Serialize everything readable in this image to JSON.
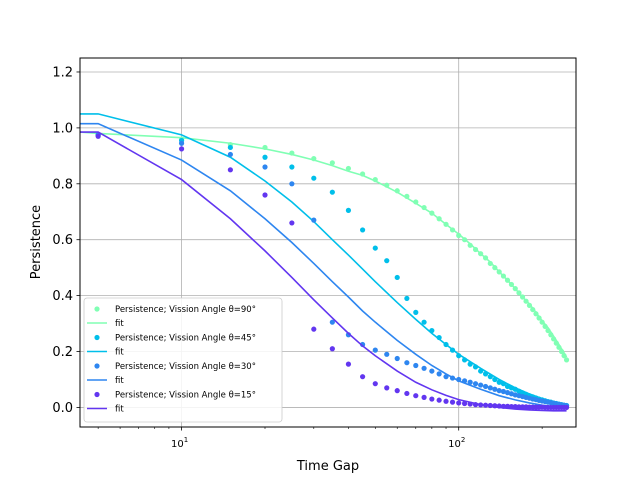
{
  "chart_data": {
    "type": "scatter",
    "xlabel": "Time Gap",
    "ylabel": "Persistence",
    "xscale": "log",
    "xlim": [
      4.3,
      265
    ],
    "ylim": [
      -0.07,
      1.25
    ],
    "x_ticks": [
      {
        "value": 10,
        "base": "10",
        "exp": "1"
      },
      {
        "value": 100,
        "base": "10",
        "exp": "2"
      }
    ],
    "y_ticks": [
      "0.0",
      "0.2",
      "0.4",
      "0.6",
      "0.8",
      "1.0",
      "1.2"
    ],
    "grid": true,
    "legend_position": "lower-left",
    "series": [
      {
        "name": "Persistence; Vission Angle θ=90°",
        "fit_name": "fit",
        "color": "#80ffb4",
        "points": [
          [
            5,
            0.975
          ],
          [
            10,
            0.96
          ],
          [
            15,
            0.94
          ],
          [
            20,
            0.93
          ],
          [
            25,
            0.91
          ],
          [
            30,
            0.89
          ],
          [
            35,
            0.875
          ],
          [
            40,
            0.855
          ],
          [
            45,
            0.835
          ],
          [
            50,
            0.815
          ],
          [
            55,
            0.795
          ],
          [
            60,
            0.775
          ],
          [
            65,
            0.755
          ],
          [
            70,
            0.735
          ],
          [
            75,
            0.715
          ],
          [
            80,
            0.695
          ],
          [
            85,
            0.675
          ],
          [
            90,
            0.655
          ],
          [
            95,
            0.635
          ],
          [
            100,
            0.615
          ],
          [
            105,
            0.6
          ],
          [
            110,
            0.58
          ],
          [
            115,
            0.565
          ],
          [
            120,
            0.55
          ],
          [
            125,
            0.535
          ],
          [
            130,
            0.515
          ],
          [
            135,
            0.5
          ],
          [
            140,
            0.485
          ],
          [
            145,
            0.47
          ],
          [
            150,
            0.455
          ],
          [
            155,
            0.44
          ],
          [
            160,
            0.425
          ],
          [
            165,
            0.41
          ],
          [
            170,
            0.395
          ],
          [
            175,
            0.38
          ],
          [
            180,
            0.365
          ],
          [
            185,
            0.35
          ],
          [
            190,
            0.335
          ],
          [
            195,
            0.32
          ],
          [
            200,
            0.305
          ],
          [
            205,
            0.29
          ],
          [
            210,
            0.275
          ],
          [
            215,
            0.26
          ],
          [
            220,
            0.245
          ],
          [
            225,
            0.23
          ],
          [
            230,
            0.215
          ],
          [
            235,
            0.2
          ],
          [
            240,
            0.185
          ],
          [
            245,
            0.17
          ]
        ],
        "fit": [
          [
            4.3,
            0.985
          ],
          [
            5,
            0.98
          ],
          [
            10,
            0.965
          ],
          [
            15,
            0.945
          ],
          [
            20,
            0.925
          ],
          [
            25,
            0.905
          ],
          [
            30,
            0.885
          ],
          [
            35,
            0.865
          ],
          [
            40,
            0.845
          ],
          [
            45,
            0.83
          ],
          [
            50,
            0.81
          ],
          [
            60,
            0.77
          ],
          [
            70,
            0.73
          ],
          [
            80,
            0.695
          ],
          [
            90,
            0.655
          ],
          [
            100,
            0.62
          ],
          [
            110,
            0.585
          ],
          [
            120,
            0.55
          ],
          [
            130,
            0.52
          ],
          [
            140,
            0.485
          ],
          [
            150,
            0.455
          ],
          [
            160,
            0.425
          ],
          [
            170,
            0.395
          ],
          [
            180,
            0.37
          ],
          [
            190,
            0.34
          ],
          [
            200,
            0.31
          ],
          [
            210,
            0.285
          ],
          [
            220,
            0.255
          ],
          [
            230,
            0.225
          ],
          [
            240,
            0.195
          ],
          [
            245,
            0.18
          ]
        ]
      },
      {
        "name": "Persistence; Vission Angle θ=45°",
        "fit_name": "fit",
        "color": "#00bfea",
        "points": [
          [
            5,
            0.975
          ],
          [
            10,
            0.955
          ],
          [
            15,
            0.93
          ],
          [
            20,
            0.895
          ],
          [
            25,
            0.86
          ],
          [
            30,
            0.82
          ],
          [
            35,
            0.77
          ],
          [
            40,
            0.705
          ],
          [
            45,
            0.635
          ],
          [
            50,
            0.57
          ],
          [
            55,
            0.525
          ],
          [
            60,
            0.465
          ],
          [
            65,
            0.39
          ],
          [
            70,
            0.34
          ],
          [
            75,
            0.305
          ],
          [
            80,
            0.275
          ],
          [
            85,
            0.25
          ],
          [
            90,
            0.225
          ],
          [
            95,
            0.205
          ],
          [
            100,
            0.185
          ],
          [
            105,
            0.17
          ],
          [
            110,
            0.155
          ],
          [
            115,
            0.145
          ],
          [
            120,
            0.13
          ],
          [
            125,
            0.12
          ],
          [
            130,
            0.11
          ],
          [
            135,
            0.1
          ],
          [
            140,
            0.09
          ],
          [
            145,
            0.085
          ],
          [
            150,
            0.075
          ],
          [
            155,
            0.07
          ],
          [
            160,
            0.065
          ],
          [
            165,
            0.058
          ],
          [
            170,
            0.052
          ],
          [
            175,
            0.047
          ],
          [
            180,
            0.042
          ],
          [
            185,
            0.038
          ],
          [
            190,
            0.034
          ],
          [
            195,
            0.03
          ],
          [
            200,
            0.027
          ],
          [
            205,
            0.024
          ],
          [
            210,
            0.021
          ],
          [
            215,
            0.019
          ],
          [
            220,
            0.016
          ],
          [
            225,
            0.014
          ],
          [
            230,
            0.012
          ],
          [
            235,
            0.01
          ],
          [
            240,
            0.008
          ],
          [
            245,
            0.007
          ]
        ],
        "fit": [
          [
            4.3,
            1.05
          ],
          [
            5,
            1.05
          ],
          [
            10,
            0.975
          ],
          [
            15,
            0.895
          ],
          [
            20,
            0.81
          ],
          [
            25,
            0.735
          ],
          [
            30,
            0.665
          ],
          [
            35,
            0.6
          ],
          [
            40,
            0.545
          ],
          [
            45,
            0.495
          ],
          [
            50,
            0.45
          ],
          [
            60,
            0.375
          ],
          [
            70,
            0.315
          ],
          [
            80,
            0.265
          ],
          [
            90,
            0.225
          ],
          [
            100,
            0.19
          ],
          [
            120,
            0.14
          ],
          [
            140,
            0.1
          ],
          [
            160,
            0.07
          ],
          [
            180,
            0.048
          ],
          [
            200,
            0.032
          ],
          [
            220,
            0.02
          ],
          [
            245,
            0.01
          ]
        ]
      },
      {
        "name": "Persistence; Vission Angle θ=30°",
        "fit_name": "fit",
        "color": "#2e86f0",
        "points": [
          [
            5,
            0.975
          ],
          [
            10,
            0.945
          ],
          [
            15,
            0.905
          ],
          [
            20,
            0.86
          ],
          [
            25,
            0.8
          ],
          [
            30,
            0.67
          ],
          [
            35,
            0.305
          ],
          [
            40,
            0.26
          ],
          [
            45,
            0.225
          ],
          [
            50,
            0.205
          ],
          [
            55,
            0.19
          ],
          [
            60,
            0.175
          ],
          [
            65,
            0.16
          ],
          [
            70,
            0.15
          ],
          [
            75,
            0.14
          ],
          [
            80,
            0.13
          ],
          [
            85,
            0.12
          ],
          [
            90,
            0.11
          ],
          [
            95,
            0.105
          ],
          [
            100,
            0.1
          ],
          [
            105,
            0.095
          ],
          [
            110,
            0.09
          ],
          [
            115,
            0.085
          ],
          [
            120,
            0.08
          ],
          [
            125,
            0.075
          ],
          [
            130,
            0.07
          ],
          [
            135,
            0.065
          ],
          [
            140,
            0.06
          ],
          [
            145,
            0.057
          ],
          [
            150,
            0.053
          ],
          [
            155,
            0.049
          ],
          [
            160,
            0.045
          ],
          [
            165,
            0.042
          ],
          [
            170,
            0.039
          ],
          [
            175,
            0.036
          ],
          [
            180,
            0.033
          ],
          [
            185,
            0.03
          ],
          [
            190,
            0.028
          ],
          [
            195,
            0.025
          ],
          [
            200,
            0.023
          ],
          [
            205,
            0.021
          ],
          [
            210,
            0.019
          ],
          [
            215,
            0.017
          ],
          [
            220,
            0.015
          ],
          [
            225,
            0.013
          ],
          [
            230,
            0.011
          ],
          [
            235,
            0.009
          ],
          [
            240,
            0.008
          ],
          [
            245,
            0.006
          ]
        ],
        "fit": [
          [
            4.3,
            1.015
          ],
          [
            5,
            1.015
          ],
          [
            10,
            0.885
          ],
          [
            15,
            0.775
          ],
          [
            20,
            0.675
          ],
          [
            25,
            0.59
          ],
          [
            30,
            0.515
          ],
          [
            35,
            0.45
          ],
          [
            40,
            0.395
          ],
          [
            45,
            0.345
          ],
          [
            50,
            0.305
          ],
          [
            60,
            0.24
          ],
          [
            70,
            0.19
          ],
          [
            80,
            0.15
          ],
          [
            90,
            0.12
          ],
          [
            100,
            0.095
          ],
          [
            120,
            0.065
          ],
          [
            140,
            0.042
          ],
          [
            160,
            0.027
          ],
          [
            180,
            0.016
          ],
          [
            200,
            0.008
          ],
          [
            220,
            0.003
          ],
          [
            245,
            -0.002
          ]
        ]
      },
      {
        "name": "Persistence; Vission Angle θ=15°",
        "fit_name": "fit",
        "color": "#6236f0",
        "points": [
          [
            5,
            0.97
          ],
          [
            10,
            0.925
          ],
          [
            15,
            0.85
          ],
          [
            20,
            0.76
          ],
          [
            25,
            0.66
          ],
          [
            30,
            0.28
          ],
          [
            35,
            0.21
          ],
          [
            40,
            0.155
          ],
          [
            45,
            0.11
          ],
          [
            50,
            0.085
          ],
          [
            55,
            0.07
          ],
          [
            60,
            0.06
          ],
          [
            65,
            0.05
          ],
          [
            70,
            0.042
          ],
          [
            75,
            0.036
          ],
          [
            80,
            0.03
          ],
          [
            85,
            0.026
          ],
          [
            90,
            0.022
          ],
          [
            95,
            0.019
          ],
          [
            100,
            0.016
          ],
          [
            105,
            0.014
          ],
          [
            110,
            0.012
          ],
          [
            115,
            0.01
          ],
          [
            120,
            0.009
          ],
          [
            125,
            0.008
          ],
          [
            130,
            0.007
          ],
          [
            135,
            0.006
          ],
          [
            140,
            0.005
          ],
          [
            145,
            0.004
          ],
          [
            150,
            0.004
          ],
          [
            155,
            0.003
          ],
          [
            160,
            0.003
          ],
          [
            165,
            0.002
          ],
          [
            170,
            0.002
          ],
          [
            175,
            0.002
          ],
          [
            180,
            0.001
          ],
          [
            185,
            0.001
          ],
          [
            190,
            0.001
          ],
          [
            195,
            0.001
          ],
          [
            200,
            0.001
          ],
          [
            205,
            0.0
          ],
          [
            210,
            0.0
          ],
          [
            215,
            0.0
          ],
          [
            220,
            0.0
          ],
          [
            225,
            0.0
          ],
          [
            230,
            0.0
          ],
          [
            235,
            0.0
          ],
          [
            240,
            0.0
          ],
          [
            245,
            0.0
          ]
        ],
        "fit": [
          [
            4.3,
            0.985
          ],
          [
            5,
            0.985
          ],
          [
            10,
            0.815
          ],
          [
            15,
            0.675
          ],
          [
            20,
            0.56
          ],
          [
            25,
            0.465
          ],
          [
            30,
            0.385
          ],
          [
            35,
            0.32
          ],
          [
            40,
            0.265
          ],
          [
            45,
            0.22
          ],
          [
            50,
            0.185
          ],
          [
            60,
            0.13
          ],
          [
            70,
            0.09
          ],
          [
            80,
            0.063
          ],
          [
            90,
            0.043
          ],
          [
            100,
            0.028
          ],
          [
            120,
            0.01
          ],
          [
            140,
            0.0
          ],
          [
            160,
            -0.006
          ],
          [
            180,
            -0.009
          ],
          [
            200,
            -0.011
          ],
          [
            220,
            -0.012
          ],
          [
            245,
            -0.012
          ]
        ]
      }
    ]
  }
}
